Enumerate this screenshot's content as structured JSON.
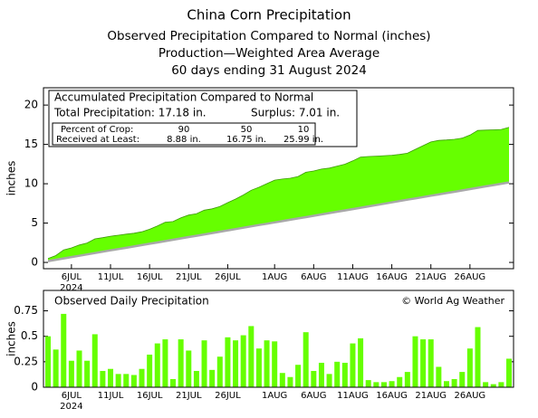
{
  "chart_data": [
    {
      "type": "area",
      "title": "China Corn Precipitation",
      "subtitle": [
        "Observed Precipitation Compared to Normal (inches)",
        "Production—Weighted Area Average",
        "60 days ending 31 August 2024"
      ],
      "box_title": "Accumulated Precipitation Compared to Normal",
      "annotations": [
        "Total Precipitation: 17.18 in.",
        "Surplus: 7.01 in."
      ],
      "percent_table": [
        [
          "Percent of Crop:",
          "90",
          "50",
          "10"
        ],
        [
          "Received at Least:",
          "8.88 in.",
          "16.75 in.",
          "25.99 in."
        ]
      ],
      "ylabel": "inches",
      "x_year_label": "2024",
      "x": [
        "2024-07-03",
        "2024-07-04",
        "2024-07-05",
        "2024-07-06",
        "2024-07-07",
        "2024-07-08",
        "2024-07-09",
        "2024-07-10",
        "2024-07-11",
        "2024-07-12",
        "2024-07-13",
        "2024-07-14",
        "2024-07-15",
        "2024-07-16",
        "2024-07-17",
        "2024-07-18",
        "2024-07-19",
        "2024-07-20",
        "2024-07-21",
        "2024-07-22",
        "2024-07-23",
        "2024-07-24",
        "2024-07-25",
        "2024-07-26",
        "2024-07-27",
        "2024-07-28",
        "2024-07-29",
        "2024-07-30",
        "2024-07-31",
        "2024-08-01",
        "2024-08-02",
        "2024-08-03",
        "2024-08-04",
        "2024-08-05",
        "2024-08-06",
        "2024-08-07",
        "2024-08-08",
        "2024-08-09",
        "2024-08-10",
        "2024-08-11",
        "2024-08-12",
        "2024-08-13",
        "2024-08-14",
        "2024-08-15",
        "2024-08-16",
        "2024-08-17",
        "2024-08-18",
        "2024-08-19",
        "2024-08-20",
        "2024-08-21",
        "2024-08-22",
        "2024-08-23",
        "2024-08-24",
        "2024-08-25",
        "2024-08-26",
        "2024-08-27",
        "2024-08-28",
        "2024-08-29",
        "2024-08-30",
        "2024-08-31"
      ],
      "xlim": [
        "2024-07-03",
        "2024-08-31"
      ],
      "xticks": [
        {
          "value": "2024-07-06",
          "label": "6JUL"
        },
        {
          "value": "2024-07-11",
          "label": "11JUL"
        },
        {
          "value": "2024-07-16",
          "label": "16JUL"
        },
        {
          "value": "2024-07-21",
          "label": "21JUL"
        },
        {
          "value": "2024-07-26",
          "label": "26JUL"
        },
        {
          "value": "2024-08-01",
          "label": "1AUG"
        },
        {
          "value": "2024-08-06",
          "label": "6AUG"
        },
        {
          "value": "2024-08-11",
          "label": "11AUG"
        },
        {
          "value": "2024-08-16",
          "label": "16AUG"
        },
        {
          "value": "2024-08-21",
          "label": "21AUG"
        },
        {
          "value": "2024-08-26",
          "label": "26AUG"
        }
      ],
      "series": [
        {
          "color": "#66ff00",
          "values": [
            0.5,
            0.87,
            1.59,
            1.85,
            2.21,
            2.47,
            2.99,
            3.15,
            3.33,
            3.46,
            3.59,
            3.71,
            3.89,
            4.21,
            4.64,
            5.11,
            5.19,
            5.66,
            6.02,
            6.18,
            6.64,
            6.81,
            7.11,
            7.6,
            8.06,
            8.57,
            9.17,
            9.55,
            10.01,
            10.46,
            10.6,
            10.7,
            10.92,
            11.46,
            11.62,
            11.86,
            11.99,
            12.24,
            12.48,
            12.91,
            13.39,
            13.46,
            13.51,
            13.56,
            13.62,
            13.72,
            13.87,
            14.37,
            14.84,
            15.31,
            15.51,
            15.57,
            15.65,
            15.8,
            16.18,
            16.77,
            16.82,
            16.85,
            16.9,
            17.18
          ]
        },
        {
          "color": "#a8a8a8",
          "values": [
            0.17,
            0.34,
            0.51,
            0.68,
            0.85,
            1.02,
            1.19,
            1.36,
            1.53,
            1.7,
            1.86,
            2.03,
            2.2,
            2.37,
            2.54,
            2.71,
            2.88,
            3.05,
            3.22,
            3.39,
            3.56,
            3.73,
            3.9,
            4.07,
            4.24,
            4.41,
            4.58,
            4.75,
            4.92,
            5.09,
            5.25,
            5.42,
            5.59,
            5.76,
            5.93,
            6.1,
            6.27,
            6.44,
            6.61,
            6.78,
            6.95,
            7.12,
            7.29,
            7.46,
            7.63,
            7.8,
            7.97,
            8.14,
            8.31,
            8.48,
            8.64,
            8.81,
            8.98,
            9.15,
            9.32,
            9.49,
            9.66,
            9.83,
            10.0,
            10.17
          ]
        }
      ],
      "ylim": [
        -0.8,
        22.2
      ],
      "yticks": [
        0,
        5,
        10,
        15,
        20
      ]
    },
    {
      "type": "bar",
      "title": "Observed Daily Precipitation",
      "credit": "© World Ag Weather",
      "ylabel": "inches",
      "x_year_label": "2024",
      "x": [
        "2024-07-03",
        "2024-07-04",
        "2024-07-05",
        "2024-07-06",
        "2024-07-07",
        "2024-07-08",
        "2024-07-09",
        "2024-07-10",
        "2024-07-11",
        "2024-07-12",
        "2024-07-13",
        "2024-07-14",
        "2024-07-15",
        "2024-07-16",
        "2024-07-17",
        "2024-07-18",
        "2024-07-19",
        "2024-07-20",
        "2024-07-21",
        "2024-07-22",
        "2024-07-23",
        "2024-07-24",
        "2024-07-25",
        "2024-07-26",
        "2024-07-27",
        "2024-07-28",
        "2024-07-29",
        "2024-07-30",
        "2024-07-31",
        "2024-08-01",
        "2024-08-02",
        "2024-08-03",
        "2024-08-04",
        "2024-08-05",
        "2024-08-06",
        "2024-08-07",
        "2024-08-08",
        "2024-08-09",
        "2024-08-10",
        "2024-08-11",
        "2024-08-12",
        "2024-08-13",
        "2024-08-14",
        "2024-08-15",
        "2024-08-16",
        "2024-08-17",
        "2024-08-18",
        "2024-08-19",
        "2024-08-20",
        "2024-08-21",
        "2024-08-22",
        "2024-08-23",
        "2024-08-24",
        "2024-08-25",
        "2024-08-26",
        "2024-08-27",
        "2024-08-28",
        "2024-08-29",
        "2024-08-30",
        "2024-08-31"
      ],
      "xlim": [
        "2024-07-03",
        "2024-08-31"
      ],
      "xticks": [
        {
          "value": "2024-07-06",
          "label": "6JUL"
        },
        {
          "value": "2024-07-11",
          "label": "11JUL"
        },
        {
          "value": "2024-07-16",
          "label": "16JUL"
        },
        {
          "value": "2024-07-21",
          "label": "21JUL"
        },
        {
          "value": "2024-07-26",
          "label": "26JUL"
        },
        {
          "value": "2024-08-01",
          "label": "1AUG"
        },
        {
          "value": "2024-08-06",
          "label": "6AUG"
        },
        {
          "value": "2024-08-11",
          "label": "11AUG"
        },
        {
          "value": "2024-08-16",
          "label": "16AUG"
        },
        {
          "value": "2024-08-21",
          "label": "21AUG"
        },
        {
          "value": "2024-08-26",
          "label": "26AUG"
        }
      ],
      "color": "#66ff00",
      "values": [
        0.5,
        0.37,
        0.72,
        0.26,
        0.36,
        0.26,
        0.52,
        0.16,
        0.18,
        0.13,
        0.13,
        0.12,
        0.18,
        0.32,
        0.43,
        0.47,
        0.08,
        0.47,
        0.36,
        0.16,
        0.46,
        0.17,
        0.3,
        0.49,
        0.46,
        0.51,
        0.6,
        0.38,
        0.46,
        0.45,
        0.14,
        0.1,
        0.22,
        0.54,
        0.16,
        0.24,
        0.13,
        0.25,
        0.24,
        0.43,
        0.48,
        0.07,
        0.05,
        0.05,
        0.06,
        0.1,
        0.15,
        0.5,
        0.47,
        0.47,
        0.2,
        0.06,
        0.08,
        0.15,
        0.38,
        0.59,
        0.05,
        0.03,
        0.05,
        0.28
      ],
      "ylim": [
        0,
        0.95
      ],
      "yticks": [
        0,
        0.25,
        0.5,
        0.75
      ]
    }
  ]
}
